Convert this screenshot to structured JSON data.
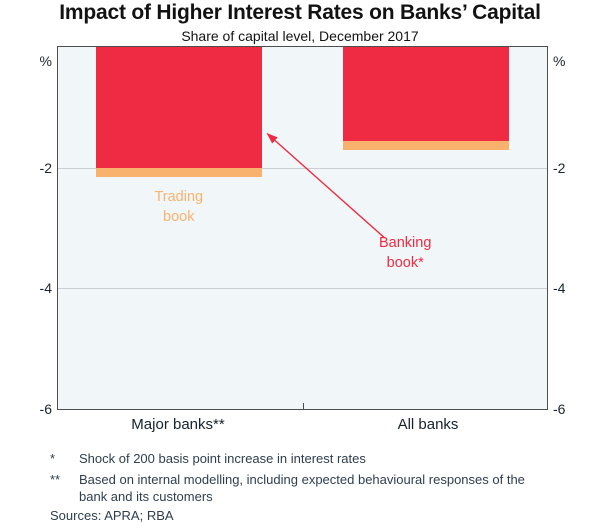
{
  "title": "Impact of Higher Interest Rates on Banks’ Capital",
  "subtitle": "Share of capital level, December 2017",
  "axis": {
    "unit": "%",
    "ticks": [
      "-2",
      "-4",
      "-6"
    ]
  },
  "chart_data": {
    "type": "bar",
    "stacked": true,
    "orientation": "vertical",
    "categories": [
      "Major banks**",
      "All banks"
    ],
    "series": [
      {
        "name": "Banking book*",
        "values": [
          -2.0,
          -1.55
        ],
        "color": "#ee2b43"
      },
      {
        "name": "Trading book",
        "values": [
          -0.15,
          -0.15
        ],
        "color": "#f9b26e"
      }
    ],
    "ylim": [
      0,
      -6
    ],
    "tick_values": [
      -2,
      -4,
      -6
    ],
    "gridlines": [
      -2,
      -4
    ],
    "plot_bg": "#f1f7f8",
    "grid_on": true,
    "legend": "in-chart labels with arrow annotation"
  },
  "labels": {
    "trading_book": "Trading\nbook",
    "banking_book": "Banking\nbook*"
  },
  "footnotes": [
    {
      "marker": "*",
      "text": "Shock of 200 basis point increase in interest rates"
    },
    {
      "marker": "**",
      "text": "Based on internal modelling, including expected behavioural responses of the bank and its customers"
    }
  ],
  "sources": "Sources: APRA; RBA"
}
